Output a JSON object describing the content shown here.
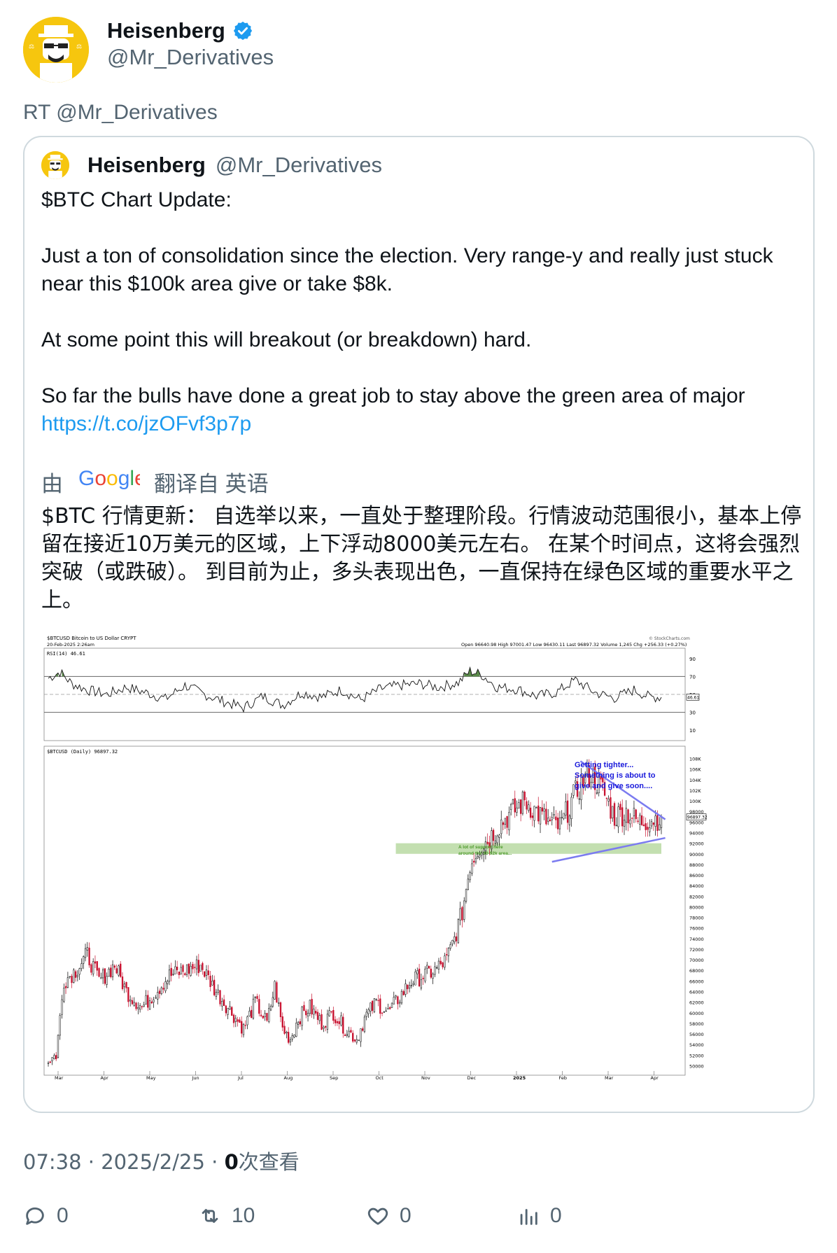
{
  "author": {
    "name": "Heisenberg",
    "handle": "@Mr_Derivatives",
    "verified": true,
    "avatar": "heisenberg-avatar"
  },
  "retweet_label": "RT @Mr_Derivatives",
  "quote": {
    "name": "Heisenberg",
    "handle": "@Mr_Derivatives",
    "paragraphs": [
      "$BTC Chart Update:",
      "Just a ton of consolidation since the election. Very range-y and really just stuck near this $100k area give or take $8k.",
      "At some point this will breakout (or breakdown) hard.",
      "So far the bulls have done a great job to stay above the green area of major"
    ],
    "link": "https://t.co/jzOFvf3p7p",
    "translate": {
      "prefix": "由",
      "brand": "Google",
      "suffix": "翻译自 英语"
    },
    "translation": "$BTC 行情更新： 自选举以来，一直处于整理阶段。行情波动范围很小，基本上停留在接近10万美元的区域，上下浮动8000美元左右。 在某个时间点，这将会强烈突破（或跌破）。 到目前为止，多头表现出色，一直保持在绿色区域的重要水平之上。"
  },
  "chart_header": {
    "symbol": "$BTCUSD",
    "name": "Bitcoin to US Dollar",
    "exchange": "CRYPT",
    "date": "20-Feb-2025 2:26am",
    "ohlc": "Open 96640.98  High 97001.47  Low 96430.11  Last 96897.32  Volume 1,245  Chg +256.33 (+0.27%)",
    "source": "© StockCharts.com",
    "rsi_label": "RSI(14) 46.61",
    "price_label": "$BTCUSD (Daily) 96897.32",
    "last_price": "96897.32",
    "rsi_last": "46.61"
  },
  "chart_data": {
    "type": "candlestick",
    "title": "$BTCUSD (Daily) 96897.32",
    "x_ticks": [
      "Mar",
      "Apr",
      "May",
      "Jun",
      "Jul",
      "Aug",
      "Sep",
      "Oct",
      "Nov",
      "Dec",
      "2025",
      "Feb",
      "Mar",
      "Apr"
    ],
    "y_ticks": [
      "108K",
      "106K",
      "104K",
      "102K",
      "100K",
      "98000",
      "96000",
      "94000",
      "92000",
      "90000",
      "88000",
      "86000",
      "84000",
      "82000",
      "80000",
      "78000",
      "76000",
      "74000",
      "72000",
      "70000",
      "68000",
      "66000",
      "64000",
      "62000",
      "60000",
      "58000",
      "56000",
      "54000",
      "52000",
      "50000"
    ],
    "ylim": [
      49000,
      109000
    ],
    "rsi_ticks": [
      "90",
      "70",
      "50",
      "30",
      "10"
    ],
    "rsi_ylim": [
      0,
      100
    ],
    "annotations": [
      "Getting tighter...",
      "Something is about to",
      "give and give soon....",
      "A lot of support here",
      "around the 90-92k area..."
    ],
    "support_zone": [
      90000,
      92000
    ],
    "triangle_upper": [
      [
        30,
        107500
      ],
      [
        40,
        96500
      ]
    ],
    "triangle_lower": [
      [
        0,
        88500
      ],
      [
        40,
        93000
      ]
    ],
    "close_waypoints": [
      [
        0,
        51000
      ],
      [
        4,
        52000
      ],
      [
        8,
        66000
      ],
      [
        14,
        68000
      ],
      [
        20,
        71000
      ],
      [
        26,
        66000
      ],
      [
        34,
        69000
      ],
      [
        40,
        64000
      ],
      [
        48,
        61000
      ],
      [
        55,
        64000
      ],
      [
        62,
        67000
      ],
      [
        70,
        68000
      ],
      [
        78,
        69000
      ],
      [
        86,
        64000
      ],
      [
        94,
        60000
      ],
      [
        100,
        57000
      ],
      [
        106,
        62000
      ],
      [
        112,
        58000
      ],
      [
        116,
        65000
      ],
      [
        120,
        57000
      ],
      [
        124,
        55000
      ],
      [
        128,
        59000
      ],
      [
        134,
        61000
      ],
      [
        140,
        58000
      ],
      [
        146,
        60000
      ],
      [
        152,
        57000
      ],
      [
        158,
        55000
      ],
      [
        162,
        59000
      ],
      [
        168,
        62000
      ],
      [
        174,
        60000
      ],
      [
        180,
        63000
      ],
      [
        186,
        66000
      ],
      [
        192,
        67000
      ],
      [
        198,
        68000
      ],
      [
        204,
        70000
      ],
      [
        208,
        74000
      ],
      [
        212,
        79000
      ],
      [
        216,
        88000
      ],
      [
        220,
        91000
      ],
      [
        226,
        93000
      ],
      [
        232,
        96000
      ],
      [
        238,
        98000
      ],
      [
        244,
        100000
      ],
      [
        250,
        98000
      ],
      [
        256,
        96000
      ],
      [
        262,
        95000
      ],
      [
        268,
        100000
      ],
      [
        274,
        104000
      ],
      [
        278,
        105000
      ],
      [
        284,
        102000
      ],
      [
        290,
        97000
      ],
      [
        296,
        98000
      ],
      [
        302,
        96000
      ],
      [
        308,
        96500
      ],
      [
        314,
        96900
      ]
    ],
    "rsi_waypoints": [
      [
        0,
        68
      ],
      [
        6,
        75
      ],
      [
        12,
        62
      ],
      [
        20,
        55
      ],
      [
        30,
        50
      ],
      [
        40,
        58
      ],
      [
        50,
        52
      ],
      [
        60,
        45
      ],
      [
        70,
        60
      ],
      [
        80,
        50
      ],
      [
        90,
        42
      ],
      [
        100,
        35
      ],
      [
        110,
        48
      ],
      [
        120,
        38
      ],
      [
        130,
        52
      ],
      [
        140,
        47
      ],
      [
        150,
        55
      ],
      [
        160,
        44
      ],
      [
        170,
        56
      ],
      [
        180,
        60
      ],
      [
        190,
        62
      ],
      [
        200,
        58
      ],
      [
        210,
        63
      ],
      [
        216,
        76
      ],
      [
        222,
        72
      ],
      [
        230,
        58
      ],
      [
        240,
        56
      ],
      [
        250,
        48
      ],
      [
        260,
        52
      ],
      [
        270,
        66
      ],
      [
        280,
        52
      ],
      [
        290,
        46
      ],
      [
        300,
        55
      ],
      [
        308,
        47
      ],
      [
        314,
        47
      ]
    ]
  },
  "meta": {
    "time": "07:38",
    "sep": "·",
    "date": "2025/2/25",
    "views": "0",
    "views_label": "次查看"
  },
  "actions": {
    "replies": "0",
    "retweets": "10",
    "likes": "0",
    "views": "0"
  },
  "colors": {
    "link": "#1d9bf0",
    "muted": "#536471",
    "verified": "#1d9bf0",
    "candle_up": "#000000",
    "candle_down": "#c8102e",
    "rsi_fill": "#5a8a4a",
    "annotation": "#1a1adb",
    "support": "#a9d18e"
  }
}
